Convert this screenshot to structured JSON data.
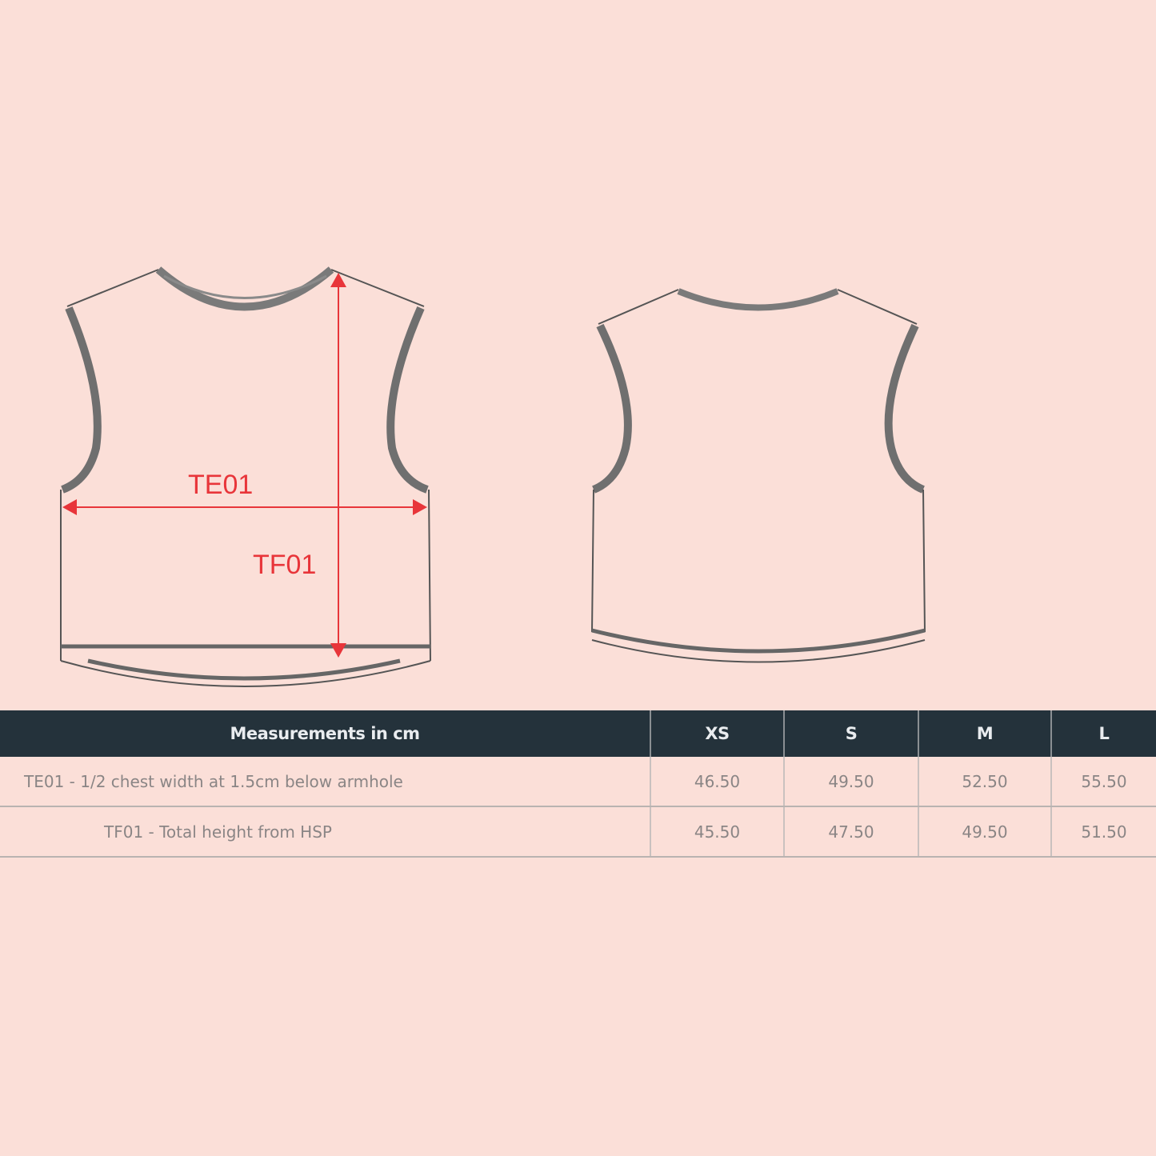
{
  "diagram": {
    "labels": {
      "chest": "TE01",
      "height": "TF01"
    },
    "colors": {
      "background": "#fbdfd8",
      "measure_line": "#e8353a",
      "outline": "#555555",
      "trim": "#7a7a7a",
      "table_header": "#24323b"
    }
  },
  "table": {
    "header": {
      "title": "Measurements in cm",
      "sizes": [
        "XS",
        "S",
        "M",
        "L"
      ]
    },
    "rows": [
      {
        "label": "TE01 - 1/2 chest width at 1.5cm below armhole",
        "values": [
          "46.50",
          "49.50",
          "52.50",
          "55.50"
        ]
      },
      {
        "label": "TF01 - Total height from HSP",
        "values": [
          "45.50",
          "47.50",
          "49.50",
          "51.50"
        ]
      }
    ]
  }
}
